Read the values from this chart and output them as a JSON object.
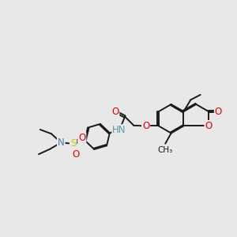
{
  "bg_color": "#e8e8e8",
  "bond_color": "#1a1a1a",
  "bond_lw": 1.4,
  "atom_colors": {
    "N": "#4682b4",
    "O": "#dd0000",
    "S": "#cccc00",
    "NH": "#5a9aaa"
  },
  "font_size": 8.5
}
